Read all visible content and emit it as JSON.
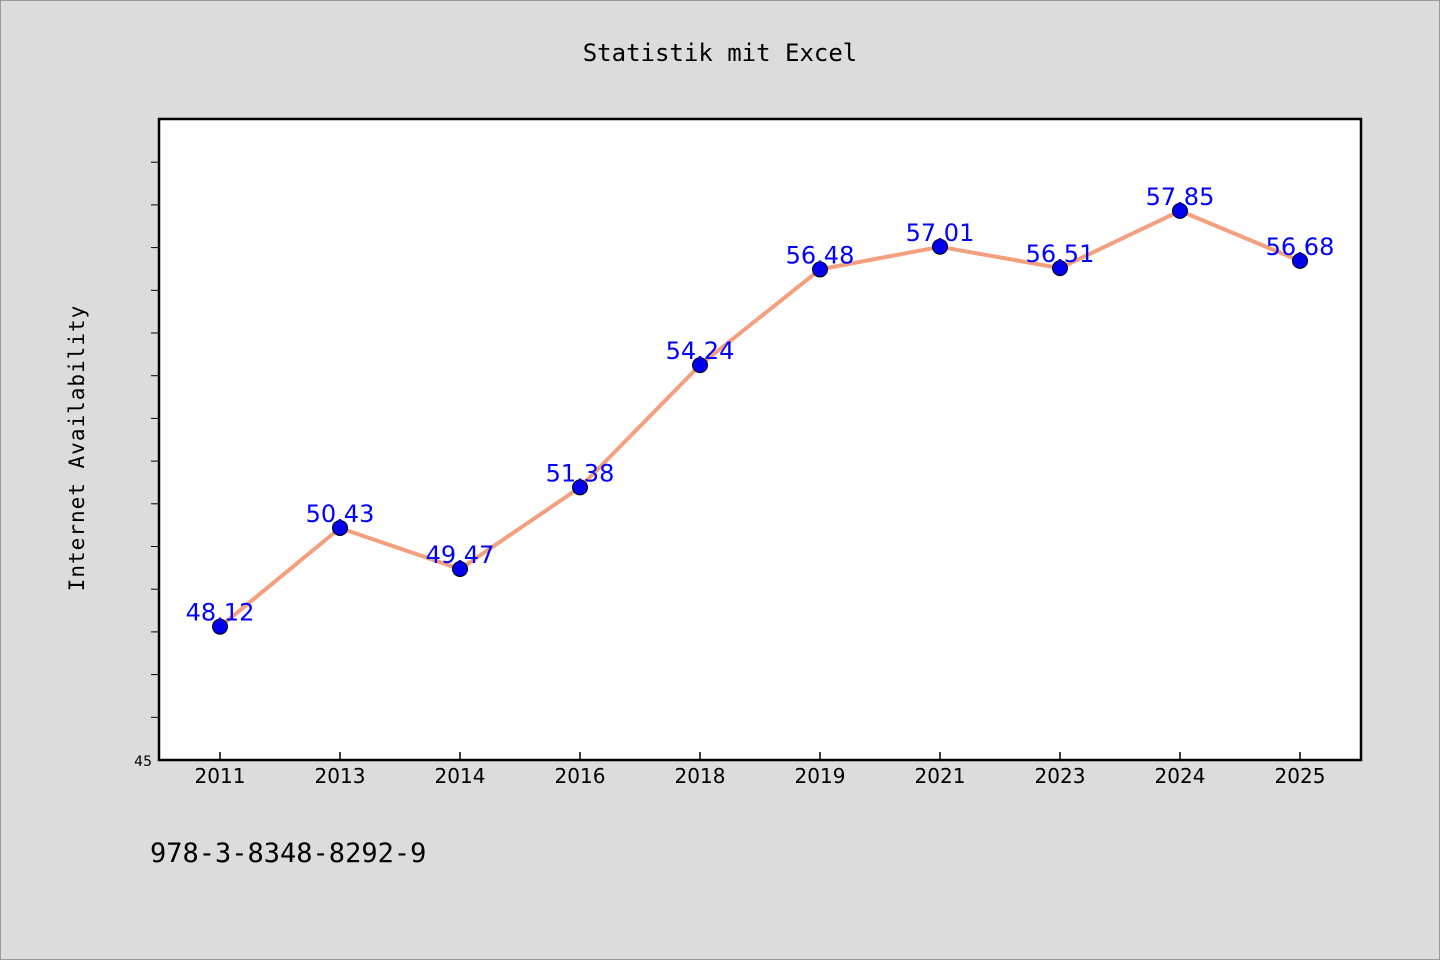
{
  "chart_data": {
    "type": "line",
    "title": "Statistik mit Excel",
    "xlabel": "",
    "ylabel": "Internet Availability",
    "categories": [
      "2011",
      "2013",
      "2014",
      "2016",
      "2018",
      "2019",
      "2021",
      "2023",
      "2024",
      "2025"
    ],
    "series": [
      {
        "values": [
          48.12,
          50.43,
          49.47,
          51.38,
          54.24,
          56.48,
          57.01,
          56.51,
          57.85,
          56.68
        ]
      }
    ],
    "data_labels": [
      "48.12",
      "50.43",
      "49.47",
      "51.38",
      "54.24",
      "56.48",
      "57.01",
      "56.51",
      "57.85",
      "56.68"
    ],
    "ylim": [
      45,
      60
    ],
    "y_min_label": "45",
    "grid": false,
    "legend": "none",
    "colors": {
      "line": "#f4a07e",
      "marker": "#0000ee",
      "data_label": "#0000ff",
      "background": "#dcdcdc",
      "plot_area": "#ffffff"
    }
  },
  "footer": {
    "isbn": "978-3-8348-8292-9"
  }
}
